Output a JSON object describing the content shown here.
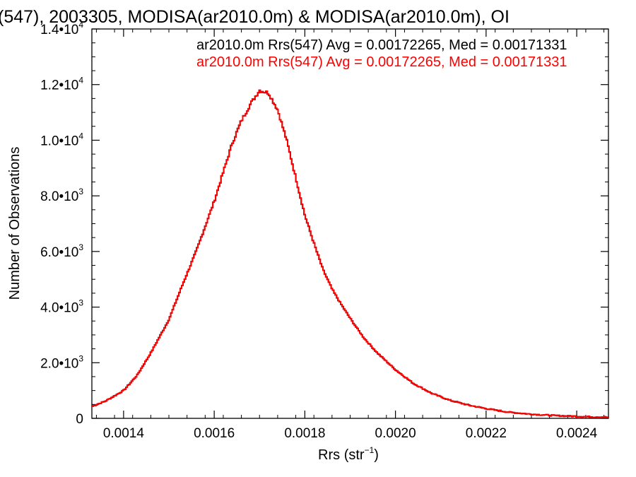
{
  "chart_data": {
    "type": "line",
    "title": "(547), 2003305, MODISA(ar2010.0m) & MODISA(ar2010.0m), OI",
    "xlabel": "Rrs (str",
    "xlabel_sup": "−1",
    "xlabel_close": ")",
    "ylabel": "Number of Observations",
    "xlim": [
      0.00133,
      0.00247
    ],
    "ylim": [
      0,
      14000
    ],
    "grid": false,
    "x_ticks": [
      {
        "value": 0.0014,
        "label": "0.0014"
      },
      {
        "value": 0.0016,
        "label": "0.0016"
      },
      {
        "value": 0.0018,
        "label": "0.0018"
      },
      {
        "value": 0.002,
        "label": "0.0020"
      },
      {
        "value": 0.0022,
        "label": "0.0022"
      },
      {
        "value": 0.0024,
        "label": "0.0024"
      }
    ],
    "y_ticks": [
      {
        "value": 0,
        "label": "0",
        "exp": ""
      },
      {
        "value": 2000,
        "label": "2.0•10",
        "exp": "3"
      },
      {
        "value": 4000,
        "label": "4.0•10",
        "exp": "3"
      },
      {
        "value": 6000,
        "label": "6.0•10",
        "exp": "3"
      },
      {
        "value": 8000,
        "label": "8.0•10",
        "exp": "3"
      },
      {
        "value": 10000,
        "label": "1.0•10",
        "exp": "4"
      },
      {
        "value": 12000,
        "label": "1.2•10",
        "exp": "4"
      },
      {
        "value": 14000,
        "label": "1.4•10",
        "exp": "4"
      }
    ],
    "annotations": [
      {
        "text": "ar2010.0m Rrs(547) Avg = 0.00172265, Med = 0.00171331",
        "color": "#000000"
      },
      {
        "text": "ar2010.0m Rrs(547) Avg = 0.00172265, Med = 0.00171331",
        "color": "#ff0000"
      }
    ],
    "series": [
      {
        "color": "#000000",
        "x": [
          0.00133,
          0.00136,
          0.0014,
          0.00143,
          0.00146,
          0.0015,
          0.00153,
          0.00156,
          0.00158,
          0.0016,
          0.00162,
          0.00164,
          0.00166,
          0.00168,
          0.0017,
          0.00172,
          0.00174,
          0.00176,
          0.00178,
          0.0018,
          0.00182,
          0.00184,
          0.00186,
          0.00188,
          0.0019,
          0.00193,
          0.00196,
          0.002,
          0.00204,
          0.00208,
          0.00212,
          0.00216,
          0.0022,
          0.00225,
          0.0023,
          0.00235,
          0.0024,
          0.00247
        ],
        "y": [
          430,
          620,
          1000,
          1550,
          2350,
          3550,
          4800,
          6000,
          6900,
          7800,
          8850,
          9900,
          10700,
          11300,
          11800,
          11700,
          11100,
          10000,
          8650,
          7300,
          6300,
          5350,
          4650,
          4100,
          3600,
          2900,
          2350,
          1750,
          1250,
          900,
          650,
          480,
          350,
          220,
          150,
          100,
          70,
          40
        ]
      },
      {
        "color": "#ff0000",
        "x": [
          0.00133,
          0.00136,
          0.0014,
          0.00143,
          0.00146,
          0.0015,
          0.00153,
          0.00156,
          0.00158,
          0.0016,
          0.00162,
          0.00164,
          0.00166,
          0.00168,
          0.0017,
          0.00172,
          0.00174,
          0.00176,
          0.00178,
          0.0018,
          0.00182,
          0.00184,
          0.00186,
          0.00188,
          0.0019,
          0.00193,
          0.00196,
          0.002,
          0.00204,
          0.00208,
          0.00212,
          0.00216,
          0.0022,
          0.00225,
          0.0023,
          0.00235,
          0.0024,
          0.00247
        ],
        "y": [
          430,
          620,
          1000,
          1550,
          2350,
          3550,
          4800,
          6000,
          6900,
          7800,
          8850,
          9900,
          10700,
          11300,
          11800,
          11700,
          11100,
          10000,
          8650,
          7300,
          6300,
          5350,
          4650,
          4100,
          3600,
          2900,
          2350,
          1750,
          1250,
          900,
          650,
          480,
          350,
          220,
          150,
          100,
          70,
          40
        ]
      }
    ]
  }
}
